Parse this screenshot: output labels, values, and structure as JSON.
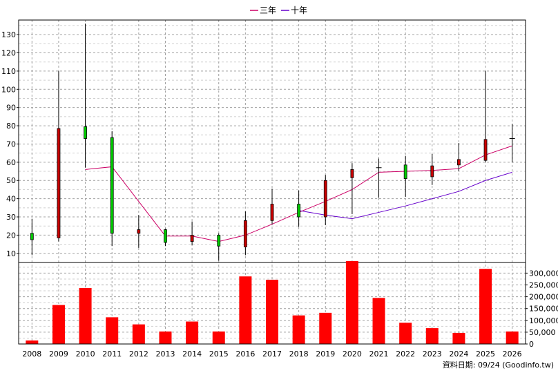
{
  "legend": {
    "three_year": "三年",
    "ten_year": "十年"
  },
  "footer": {
    "source": "資料日期: 09/24  (Goodinfo.tw)"
  },
  "colors": {
    "up": "#00cc00",
    "down": "#cc0000",
    "volume": "#ff0000",
    "three_year": "#cc0066",
    "ten_year": "#6600cc"
  },
  "chart_data": [
    {
      "type": "candlestick",
      "title": "",
      "categories": [
        "2008",
        "2009",
        "2010",
        "2011",
        "2012",
        "2013",
        "2014",
        "2015",
        "2016",
        "2017",
        "2018",
        "2019",
        "2020",
        "2021",
        "2022",
        "2023",
        "2024",
        "2025",
        "2026"
      ],
      "ylim": [
        5,
        138
      ],
      "yticks": [
        10,
        20,
        30,
        40,
        50,
        60,
        70,
        80,
        90,
        100,
        110,
        120,
        130
      ],
      "grid": true,
      "legend_position": "top-center",
      "candles": [
        {
          "open": 17.5,
          "close": 21,
          "high": 29,
          "low": 9
        },
        {
          "open": 78.5,
          "close": 18.5,
          "high": 110,
          "low": 16.5
        },
        {
          "open": 73,
          "close": 79.5,
          "high": 136,
          "low": 57
        },
        {
          "open": 21,
          "close": 73.5,
          "high": 77,
          "low": 14
        },
        {
          "open": 23,
          "close": 21,
          "high": 31,
          "low": 13
        },
        {
          "open": 16,
          "close": 23,
          "high": 23.5,
          "low": 14
        },
        {
          "open": 20,
          "close": 16.5,
          "high": 27.5,
          "low": 14.5
        },
        {
          "open": 14,
          "close": 20,
          "high": 21,
          "low": 6
        },
        {
          "open": 28,
          "close": 13.5,
          "high": 33,
          "low": 9
        },
        {
          "open": 37,
          "close": 28,
          "high": 45.5,
          "low": 26
        },
        {
          "open": 30,
          "close": 37,
          "high": 44.5,
          "low": 24.5
        },
        {
          "open": 50,
          "close": 30,
          "high": 53,
          "low": 25.5
        },
        {
          "open": 56,
          "close": 51.5,
          "high": 59.5,
          "low": 31.5
        },
        {
          "open": 57,
          "close": 57,
          "high": 62,
          "low": 40.5
        },
        {
          "open": 51,
          "close": 58.5,
          "high": 63.5,
          "low": 41
        },
        {
          "open": 58,
          "close": 52,
          "high": 64.5,
          "low": 47.5
        },
        {
          "open": 61.5,
          "close": 58.5,
          "high": 70.5,
          "low": 55
        },
        {
          "open": 72.5,
          "close": 61,
          "high": 110,
          "low": 60
        },
        {
          "open": 73,
          "close": 73,
          "high": 81,
          "low": 60
        }
      ],
      "series": [
        {
          "name": "三年",
          "values": [
            null,
            null,
            56,
            57.5,
            null,
            19.5,
            19.5,
            16.5,
            20,
            26,
            32.5,
            38.5,
            45,
            54.5,
            55,
            55.5,
            56.5,
            64,
            69
          ]
        },
        {
          "name": "十年",
          "values": [
            null,
            null,
            null,
            null,
            null,
            null,
            null,
            null,
            null,
            null,
            33.5,
            31,
            29,
            32.5,
            36,
            40,
            44,
            50,
            54.5
          ]
        }
      ]
    },
    {
      "type": "bar",
      "title": "",
      "categories": [
        "2008",
        "2009",
        "2010",
        "2011",
        "2012",
        "2013",
        "2014",
        "2015",
        "2016",
        "2017",
        "2018",
        "2019",
        "2020",
        "2021",
        "2022",
        "2023",
        "2024",
        "2025",
        "2026"
      ],
      "values": [
        15000,
        165000,
        237000,
        113000,
        83000,
        53000,
        95000,
        53000,
        286000,
        272000,
        121000,
        132000,
        351000,
        195000,
        90000,
        67000,
        47000,
        318000,
        53000
      ],
      "ylim": [
        0,
        345000
      ],
      "yticks": [
        0,
        50000,
        100000,
        150000,
        200000,
        250000,
        300000
      ],
      "ytick_labels": [
        "0",
        "50,000",
        "100,000",
        "150,000",
        "200,000",
        "250,000",
        "300,000"
      ],
      "grid": true
    }
  ]
}
